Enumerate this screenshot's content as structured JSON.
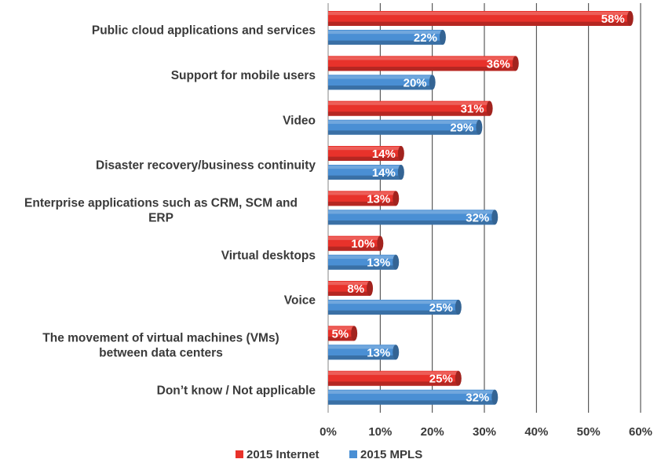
{
  "chart_data": {
    "type": "bar",
    "orientation": "horizontal",
    "categories": [
      [
        "Public cloud applications and services"
      ],
      [
        "Support for mobile users"
      ],
      [
        "Video"
      ],
      [
        "Disaster recovery/business continuity"
      ],
      [
        "Enterprise applications such as CRM, SCM and",
        "ERP"
      ],
      [
        "Virtual desktops"
      ],
      [
        "Voice"
      ],
      [
        "The movement of virtual machines (VMs)",
        "between data centers"
      ],
      [
        "Don’t know / Not applicable"
      ]
    ],
    "series": [
      {
        "name": "2015 Internet",
        "color": "#e8322b",
        "values": [
          58,
          36,
          31,
          14,
          13,
          10,
          8,
          5,
          25
        ]
      },
      {
        "name": "2015 MPLS",
        "color": "#4a8fd4",
        "values": [
          22,
          20,
          29,
          14,
          32,
          13,
          25,
          13,
          32
        ]
      }
    ],
    "xlim": [
      0,
      60
    ],
    "xticks": [
      "0%",
      "10%",
      "20%",
      "30%",
      "40%",
      "50%",
      "60%"
    ],
    "grid": true,
    "legend_position": "bottom",
    "title": "",
    "xlabel": "",
    "ylabel": ""
  }
}
